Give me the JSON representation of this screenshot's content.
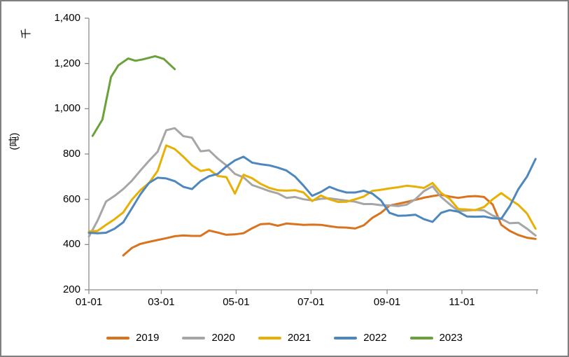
{
  "chart_data": {
    "type": "line",
    "title": "",
    "unit_label": "千",
    "y_axis_title": "(吨)",
    "xlabel": "",
    "ylabel": "(吨)",
    "ylim": [
      200,
      1400
    ],
    "y_ticks": [
      200,
      400,
      600,
      800,
      1000,
      1200,
      1400
    ],
    "y_tick_labels": [
      "200",
      "400",
      "600",
      "800",
      "1,000",
      "1,200",
      "1,400"
    ],
    "x_tick_labels": [
      "01-01",
      "03-01",
      "05-01",
      "07-01",
      "09-01",
      "11-01"
    ],
    "x_tick_days": [
      1,
      60,
      121,
      182,
      244,
      305
    ],
    "x_range_days": [
      1,
      366
    ],
    "grid": false,
    "legend_position": "bottom",
    "background": "#FFFFFF",
    "axis_color": "#8C8C8C",
    "border_color": "#7F7F7F",
    "text_color": "#000000",
    "series": [
      {
        "name": "2019",
        "color": "#D9731E",
        "days": [
          29,
          36,
          43,
          50,
          57,
          64,
          71,
          78,
          85,
          92,
          99,
          106,
          113,
          120,
          127,
          134,
          141,
          148,
          155,
          162,
          169,
          176,
          183,
          190,
          197,
          204,
          211,
          218,
          225,
          232,
          239,
          246,
          253,
          260,
          267,
          274,
          281,
          288,
          295,
          302,
          309,
          316,
          323,
          330,
          337,
          344,
          351,
          358,
          365
        ],
        "values": [
          352,
          385,
          403,
          412,
          420,
          428,
          437,
          440,
          438,
          438,
          462,
          453,
          443,
          445,
          450,
          472,
          490,
          492,
          483,
          493,
          490,
          487,
          488,
          487,
          481,
          476,
          475,
          471,
          485,
          518,
          540,
          572,
          580,
          588,
          597,
          607,
          614,
          620,
          612,
          606,
          612,
          614,
          610,
          577,
          487,
          460,
          442,
          430,
          425
        ]
      },
      {
        "name": "2020",
        "color": "#A6A6A6",
        "days": [
          1,
          8,
          15,
          22,
          29,
          36,
          43,
          50,
          57,
          64,
          71,
          78,
          85,
          92,
          99,
          106,
          113,
          120,
          127,
          134,
          141,
          148,
          155,
          162,
          169,
          176,
          183,
          190,
          197,
          204,
          211,
          218,
          225,
          232,
          239,
          246,
          253,
          260,
          267,
          274,
          281,
          288,
          295,
          302,
          309,
          316,
          323,
          330,
          337,
          344,
          351,
          358,
          365
        ],
        "values": [
          435,
          505,
          590,
          615,
          645,
          682,
          727,
          770,
          810,
          905,
          914,
          879,
          872,
          812,
          816,
          780,
          750,
          712,
          697,
          663,
          650,
          636,
          626,
          606,
          610,
          600,
          595,
          602,
          604,
          599,
          594,
          589,
          579,
          579,
          574,
          573,
          570,
          576,
          600,
          636,
          657,
          610,
          578,
          548,
          550,
          553,
          551,
          528,
          514,
          494,
          496,
          470,
          440
        ]
      },
      {
        "name": "2021",
        "color": "#E8B004",
        "days": [
          1,
          8,
          15,
          22,
          29,
          36,
          43,
          50,
          57,
          64,
          71,
          78,
          85,
          92,
          99,
          106,
          113,
          120,
          127,
          134,
          141,
          148,
          155,
          162,
          169,
          176,
          183,
          190,
          197,
          204,
          211,
          218,
          225,
          232,
          239,
          246,
          253,
          260,
          267,
          274,
          281,
          288,
          295,
          302,
          309,
          316,
          323,
          330,
          337,
          344,
          351,
          358,
          365
        ],
        "values": [
          458,
          460,
          487,
          512,
          542,
          598,
          640,
          672,
          725,
          838,
          822,
          788,
          750,
          725,
          732,
          703,
          698,
          625,
          708,
          693,
          668,
          650,
          640,
          638,
          640,
          630,
          592,
          617,
          600,
          588,
          589,
          600,
          612,
          637,
          642,
          648,
          653,
          660,
          656,
          650,
          672,
          628,
          602,
          557,
          555,
          552,
          566,
          600,
          627,
          600,
          575,
          537,
          470
        ]
      },
      {
        "name": "2022",
        "color": "#4E87BD",
        "days": [
          1,
          8,
          15,
          22,
          29,
          36,
          43,
          50,
          57,
          64,
          71,
          78,
          85,
          92,
          99,
          106,
          113,
          120,
          127,
          134,
          141,
          148,
          155,
          162,
          169,
          176,
          183,
          190,
          197,
          204,
          211,
          218,
          225,
          232,
          239,
          246,
          253,
          260,
          267,
          274,
          281,
          288,
          295,
          302,
          309,
          316,
          323,
          330,
          337,
          344,
          351,
          358,
          365
        ],
        "values": [
          452,
          450,
          452,
          470,
          498,
          560,
          622,
          672,
          695,
          692,
          680,
          655,
          645,
          680,
          702,
          712,
          745,
          772,
          788,
          762,
          755,
          750,
          740,
          727,
          700,
          660,
          615,
          632,
          655,
          640,
          630,
          630,
          638,
          625,
          595,
          540,
          527,
          528,
          532,
          512,
          500,
          540,
          552,
          545,
          524,
          523,
          524,
          516,
          514,
          570,
          645,
          700,
          778
        ]
      },
      {
        "name": "2023",
        "color": "#69A23B",
        "days": [
          4,
          12,
          19,
          25,
          33,
          39,
          45,
          55,
          62,
          71
        ],
        "values": [
          880,
          952,
          1140,
          1192,
          1222,
          1212,
          1218,
          1232,
          1220,
          1175
        ]
      }
    ]
  }
}
